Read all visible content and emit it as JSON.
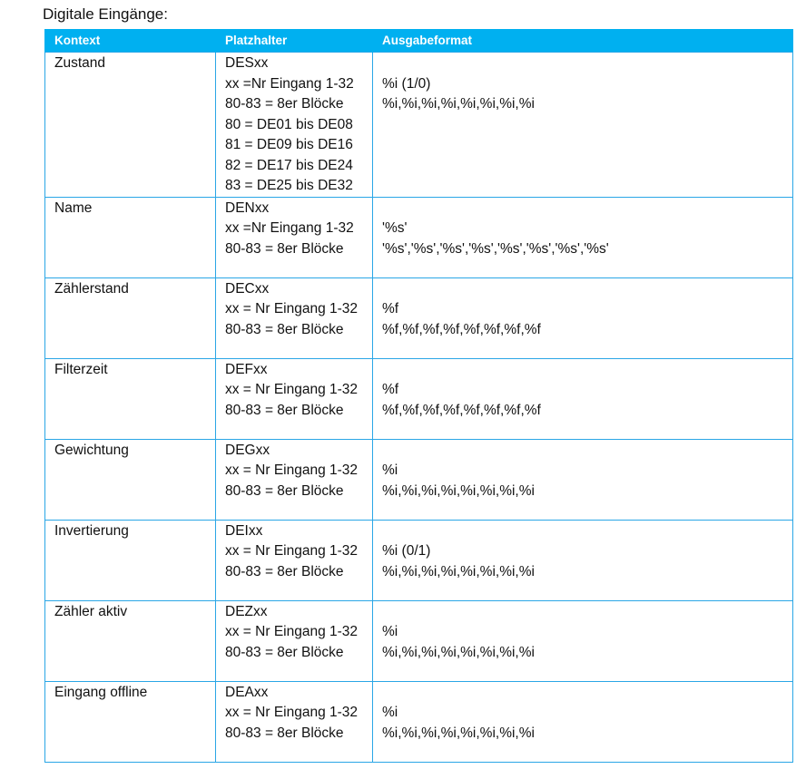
{
  "title": "Digitale Eingänge:",
  "header": {
    "col1": "Kontext",
    "col2": "Platzhalter",
    "col3": "Ausgabeformat"
  },
  "accent_color": "#00b0f0",
  "rows": [
    {
      "kontext": "Zustand",
      "platzhalter": [
        "DESxx",
        "xx =Nr Eingang 1-32",
        "80-83 = 8er Blöcke",
        "80 = DE01 bis DE08",
        "81 = DE09 bis DE16",
        "82 = DE17 bis DE24",
        "83 = DE25 bis DE32"
      ],
      "format": [
        "%i (1/0)",
        "%i,%i,%i,%i,%i,%i,%i,%i"
      ]
    },
    {
      "kontext": "Name",
      "platzhalter": [
        "DENxx",
        "xx =Nr Eingang 1-32",
        "80-83 = 8er Blöcke"
      ],
      "format": [
        "'%s'",
        "'%s','%s','%s','%s','%s','%s','%s','%s'"
      ]
    },
    {
      "kontext": "Zählerstand",
      "platzhalter": [
        "DECxx",
        "xx = Nr Eingang 1-32",
        "80-83 = 8er Blöcke"
      ],
      "format": [
        "%f",
        "%f,%f,%f,%f,%f,%f,%f,%f"
      ]
    },
    {
      "kontext": "Filterzeit",
      "platzhalter": [
        "DEFxx",
        "xx = Nr Eingang 1-32",
        "80-83 = 8er Blöcke"
      ],
      "format": [
        "%f",
        "%f,%f,%f,%f,%f,%f,%f,%f"
      ]
    },
    {
      "kontext": "Gewichtung",
      "platzhalter": [
        "DEGxx",
        "xx = Nr Eingang 1-32",
        "80-83 = 8er Blöcke"
      ],
      "format": [
        "%i",
        "%i,%i,%i,%i,%i,%i,%i,%i"
      ]
    },
    {
      "kontext": "Invertierung",
      "platzhalter": [
        "DEIxx",
        "xx = Nr Eingang 1-32",
        "80-83 = 8er Blöcke"
      ],
      "format": [
        "%i (0/1)",
        "%i,%i,%i,%i,%i,%i,%i,%i"
      ]
    },
    {
      "kontext": "Zähler aktiv",
      "platzhalter": [
        "DEZxx",
        "xx = Nr Eingang 1-32",
        "80-83 = 8er Blöcke"
      ],
      "format": [
        "%i",
        "%i,%i,%i,%i,%i,%i,%i,%i"
      ]
    },
    {
      "kontext": "Eingang offline",
      "platzhalter": [
        "DEAxx",
        "xx = Nr Eingang 1-32",
        "80-83 = 8er Blöcke"
      ],
      "format": [
        "%i",
        "%i,%i,%i,%i,%i,%i,%i,%i"
      ]
    }
  ]
}
